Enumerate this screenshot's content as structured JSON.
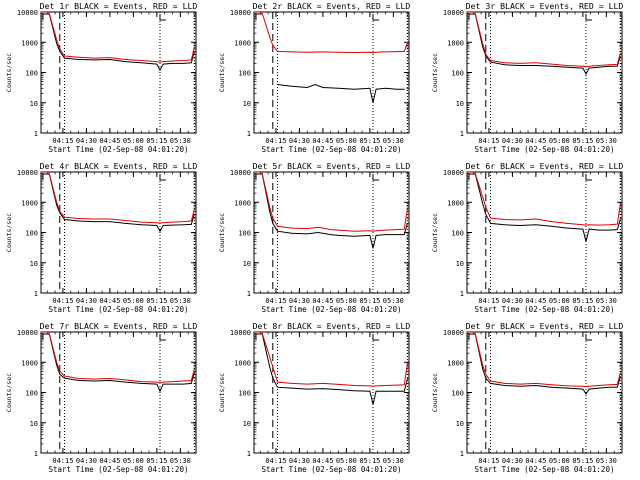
{
  "colors": {
    "events": "#000000",
    "lld": "#e00000",
    "axis": "#000000"
  },
  "ylabel": "Counts/sec",
  "xlabel": "Start Time (02-Sep-08 04:01:20)",
  "x_tick_labels": [
    "04:15",
    "04:30",
    "04:45",
    "05:00",
    "05:15",
    "05:30"
  ],
  "y_tick_labels": [
    "1",
    "10",
    "100",
    "1000",
    "10000"
  ],
  "chart_data": [
    {
      "type": "line",
      "title": "Det 1r BLACK = Events, RED = LLD",
      "xlabel": "Start Time (02-Sep-08 04:01:20)",
      "ylabel": "Counts/sec",
      "y_scale": "log",
      "ylim": [
        1,
        10000
      ],
      "xlim": [
        "04:01",
        "05:40"
      ],
      "markers": {
        "dashed": "04:13",
        "dotted": [
          "04:16",
          "05:17",
          "05:39"
        ]
      },
      "series": [
        {
          "name": "Events",
          "color": "#000000",
          "x": [
            "04:01",
            "04:06",
            "04:11",
            "04:13",
            "04:16",
            "04:25",
            "04:35",
            "04:45",
            "04:55",
            "05:05",
            "05:15",
            "05:17",
            "05:19",
            "05:25",
            "05:32",
            "05:37",
            "05:39"
          ],
          "values": [
            10000,
            10000,
            900,
            500,
            300,
            270,
            260,
            270,
            230,
            210,
            190,
            120,
            190,
            200,
            200,
            210,
            500
          ]
        },
        {
          "name": "LLD",
          "color": "#e00000",
          "x": [
            "04:01",
            "04:06",
            "04:11",
            "04:13",
            "04:16",
            "04:25",
            "04:35",
            "04:45",
            "04:55",
            "05:05",
            "05:15",
            "05:17",
            "05:19",
            "05:25",
            "05:32",
            "05:37",
            "05:39"
          ],
          "values": [
            10000,
            10000,
            1200,
            600,
            350,
            320,
            300,
            310,
            270,
            250,
            230,
            220,
            230,
            240,
            250,
            260,
            700
          ]
        }
      ]
    },
    {
      "type": "line",
      "title": "Det 2r BLACK = Events, RED = LLD",
      "xlabel": "Start Time (02-Sep-08 04:01:20)",
      "ylabel": "Counts/sec",
      "y_scale": "log",
      "ylim": [
        1,
        10000
      ],
      "xlim": [
        "04:01",
        "05:40"
      ],
      "markers": {
        "dashed": "04:13",
        "dotted": [
          "04:16",
          "05:17",
          "05:39"
        ]
      },
      "series": [
        {
          "name": "Events",
          "color": "#000000",
          "x": [
            "04:16",
            "04:25",
            "04:35",
            "04:40",
            "04:45",
            "04:55",
            "05:05",
            "05:15",
            "05:17",
            "05:19",
            "05:25",
            "05:32",
            "05:37"
          ],
          "values": [
            40,
            35,
            32,
            40,
            32,
            30,
            28,
            30,
            10,
            28,
            30,
            28,
            28
          ]
        },
        {
          "name": "LLD",
          "color": "#e00000",
          "x": [
            "04:01",
            "04:06",
            "04:11",
            "04:13",
            "04:16",
            "04:25",
            "04:35",
            "04:45",
            "04:55",
            "05:05",
            "05:15",
            "05:17",
            "05:19",
            "05:25",
            "05:32",
            "05:37",
            "05:39"
          ],
          "values": [
            10000,
            10000,
            1500,
            800,
            500,
            480,
            470,
            480,
            470,
            460,
            470,
            450,
            470,
            480,
            490,
            500,
            1000
          ]
        }
      ]
    },
    {
      "type": "line",
      "title": "Det 3r BLACK = Events, RED = LLD",
      "xlabel": "Start Time (02-Sep-08 04:01:20)",
      "ylabel": "Counts/sec",
      "y_scale": "log",
      "ylim": [
        1,
        10000
      ],
      "xlim": [
        "04:01",
        "05:40"
      ],
      "markers": {
        "dashed": "04:13",
        "dotted": [
          "04:16",
          "05:17",
          "05:39"
        ]
      },
      "series": [
        {
          "name": "Events",
          "color": "#000000",
          "x": [
            "04:01",
            "04:06",
            "04:11",
            "04:13",
            "04:16",
            "04:25",
            "04:35",
            "04:45",
            "04:55",
            "05:05",
            "05:15",
            "05:17",
            "05:19",
            "05:25",
            "05:32",
            "05:37",
            "05:39"
          ],
          "values": [
            10000,
            10000,
            700,
            350,
            220,
            180,
            170,
            170,
            160,
            150,
            140,
            90,
            140,
            150,
            160,
            160,
            350
          ]
        },
        {
          "name": "LLD",
          "color": "#e00000",
          "x": [
            "04:01",
            "04:06",
            "04:11",
            "04:13",
            "04:16",
            "04:25",
            "04:35",
            "04:45",
            "04:55",
            "05:05",
            "05:15",
            "05:17",
            "05:19",
            "05:25",
            "05:32",
            "05:37",
            "05:39"
          ],
          "values": [
            10000,
            10000,
            900,
            400,
            250,
            210,
            200,
            210,
            190,
            170,
            160,
            155,
            160,
            170,
            180,
            185,
            450
          ]
        }
      ]
    },
    {
      "type": "line",
      "title": "Det 4r BLACK = Events, RED = LLD",
      "xlabel": "Start Time (02-Sep-08 04:01:20)",
      "ylabel": "Counts/sec",
      "y_scale": "log",
      "ylim": [
        1,
        10000
      ],
      "xlim": [
        "04:01",
        "05:40"
      ],
      "markers": {
        "dashed": "04:13",
        "dotted": [
          "04:16",
          "05:17",
          "05:39"
        ]
      },
      "series": [
        {
          "name": "Events",
          "color": "#000000",
          "x": [
            "04:01",
            "04:06",
            "04:11",
            "04:13",
            "04:16",
            "04:25",
            "04:35",
            "04:45",
            "04:55",
            "05:05",
            "05:15",
            "05:17",
            "05:19",
            "05:25",
            "05:32",
            "05:37",
            "05:39"
          ],
          "values": [
            10000,
            10000,
            800,
            450,
            270,
            240,
            230,
            230,
            200,
            180,
            170,
            110,
            170,
            175,
            180,
            185,
            400
          ]
        },
        {
          "name": "LLD",
          "color": "#e00000",
          "x": [
            "04:01",
            "04:06",
            "04:11",
            "04:13",
            "04:16",
            "04:25",
            "04:35",
            "04:45",
            "04:55",
            "05:05",
            "05:15",
            "05:17",
            "05:19",
            "05:25",
            "05:32",
            "05:37",
            "05:39"
          ],
          "values": [
            10000,
            10000,
            1000,
            500,
            320,
            290,
            280,
            280,
            250,
            220,
            210,
            205,
            210,
            220,
            230,
            240,
            600
          ]
        }
      ]
    },
    {
      "type": "line",
      "title": "Det 5r BLACK = Events, RED = LLD",
      "xlabel": "Start Time (02-Sep-08 04:01:20)",
      "ylabel": "Counts/sec",
      "y_scale": "log",
      "ylim": [
        1,
        10000
      ],
      "xlim": [
        "04:01",
        "05:40"
      ],
      "markers": {
        "dashed": "04:13",
        "dotted": [
          "04:16",
          "05:17",
          "05:39"
        ]
      },
      "series": [
        {
          "name": "Events",
          "color": "#000000",
          "x": [
            "04:01",
            "04:06",
            "04:11",
            "04:13",
            "04:16",
            "04:25",
            "04:35",
            "04:42",
            "04:50",
            "04:55",
            "05:05",
            "05:15",
            "05:17",
            "05:19",
            "05:25",
            "05:32",
            "05:37",
            "05:39"
          ],
          "values": [
            10000,
            10000,
            500,
            200,
            110,
            95,
            90,
            100,
            85,
            80,
            75,
            80,
            30,
            80,
            85,
            85,
            85,
            200
          ]
        },
        {
          "name": "LLD",
          "color": "#e00000",
          "x": [
            "04:01",
            "04:06",
            "04:11",
            "04:13",
            "04:16",
            "04:25",
            "04:35",
            "04:42",
            "04:50",
            "04:55",
            "05:05",
            "05:15",
            "05:17",
            "05:19",
            "05:25",
            "05:32",
            "05:37",
            "05:39"
          ],
          "values": [
            10000,
            10000,
            700,
            300,
            160,
            140,
            135,
            150,
            125,
            120,
            110,
            115,
            110,
            115,
            120,
            125,
            130,
            600
          ]
        }
      ]
    },
    {
      "type": "line",
      "title": "Det 6r BLACK = Events, RED = LLD",
      "xlabel": "Start Time (02-Sep-08 04:01:20)",
      "ylabel": "Counts/sec",
      "y_scale": "log",
      "ylim": [
        1,
        10000
      ],
      "xlim": [
        "04:01",
        "05:40"
      ],
      "markers": {
        "dashed": "04:13",
        "dotted": [
          "04:16",
          "05:17",
          "05:39"
        ]
      },
      "series": [
        {
          "name": "Events",
          "color": "#000000",
          "x": [
            "04:01",
            "04:06",
            "04:11",
            "04:13",
            "04:16",
            "04:25",
            "04:35",
            "04:45",
            "04:55",
            "05:05",
            "05:15",
            "05:17",
            "05:19",
            "05:25",
            "05:32",
            "05:37",
            "05:39"
          ],
          "values": [
            10000,
            10000,
            900,
            400,
            200,
            180,
            170,
            180,
            160,
            140,
            130,
            50,
            130,
            120,
            120,
            125,
            280
          ]
        },
        {
          "name": "LLD",
          "color": "#e00000",
          "x": [
            "04:01",
            "04:06",
            "04:11",
            "04:13",
            "04:16",
            "04:25",
            "04:35",
            "04:45",
            "04:55",
            "05:05",
            "05:15",
            "05:17",
            "05:19",
            "05:25",
            "05:32",
            "05:37",
            "05:39"
          ],
          "values": [
            10000,
            10000,
            1500,
            700,
            300,
            270,
            260,
            280,
            230,
            200,
            180,
            175,
            180,
            175,
            180,
            190,
            900
          ]
        }
      ]
    },
    {
      "type": "line",
      "title": "Det 7r BLACK = Events, RED = LLD",
      "xlabel": "Start Time (02-Sep-08 04:01:20)",
      "ylabel": "Counts/sec",
      "y_scale": "log",
      "ylim": [
        1,
        10000
      ],
      "xlim": [
        "04:01",
        "05:40"
      ],
      "markers": {
        "dashed": "04:13",
        "dotted": [
          "04:16",
          "05:17",
          "05:39"
        ]
      },
      "series": [
        {
          "name": "Events",
          "color": "#000000",
          "x": [
            "04:01",
            "04:06",
            "04:11",
            "04:13",
            "04:16",
            "04:25",
            "04:35",
            "04:45",
            "04:55",
            "05:05",
            "05:15",
            "05:17",
            "05:19",
            "05:25",
            "05:32",
            "05:37",
            "05:39"
          ],
          "values": [
            10000,
            10000,
            800,
            400,
            300,
            250,
            240,
            250,
            220,
            200,
            190,
            110,
            190,
            190,
            190,
            200,
            450
          ]
        },
        {
          "name": "LLD",
          "color": "#e00000",
          "x": [
            "04:01",
            "04:06",
            "04:11",
            "04:13",
            "04:16",
            "04:25",
            "04:35",
            "04:45",
            "04:55",
            "05:05",
            "05:15",
            "05:17",
            "05:19",
            "05:25",
            "05:32",
            "05:37",
            "05:39"
          ],
          "values": [
            10000,
            10000,
            1000,
            500,
            350,
            290,
            280,
            290,
            260,
            230,
            220,
            215,
            220,
            230,
            240,
            250,
            600
          ]
        }
      ]
    },
    {
      "type": "line",
      "title": "Det 8r BLACK = Events, RED = LLD",
      "xlabel": "Start Time (02-Sep-08 04:01:20)",
      "ylabel": "Counts/sec",
      "y_scale": "log",
      "ylim": [
        1,
        10000
      ],
      "xlim": [
        "04:01",
        "05:40"
      ],
      "markers": {
        "dashed": "04:13",
        "dotted": [
          "04:16",
          "05:17",
          "05:39"
        ]
      },
      "series": [
        {
          "name": "Events",
          "color": "#000000",
          "x": [
            "04:01",
            "04:06",
            "04:11",
            "04:13",
            "04:16",
            "04:25",
            "04:35",
            "04:45",
            "04:55",
            "05:05",
            "05:15",
            "05:17",
            "05:19",
            "05:25",
            "05:32",
            "05:37",
            "05:39"
          ],
          "values": [
            10000,
            10000,
            700,
            300,
            150,
            140,
            130,
            135,
            125,
            115,
            110,
            40,
            110,
            110,
            110,
            110,
            280
          ]
        },
        {
          "name": "LLD",
          "color": "#e00000",
          "x": [
            "04:01",
            "04:06",
            "04:11",
            "04:13",
            "04:16",
            "04:25",
            "04:35",
            "04:45",
            "04:55",
            "05:05",
            "05:15",
            "05:17",
            "05:19",
            "05:25",
            "05:32",
            "05:37",
            "05:39"
          ],
          "values": [
            10000,
            10000,
            1500,
            700,
            220,
            200,
            190,
            200,
            185,
            170,
            165,
            160,
            165,
            170,
            175,
            180,
            900
          ]
        }
      ]
    },
    {
      "type": "line",
      "title": "Det 9r BLACK = Events, RED = LLD",
      "xlabel": "Start Time (02-Sep-08 04:01:20)",
      "ylabel": "Counts/sec",
      "y_scale": "log",
      "ylim": [
        1,
        10000
      ],
      "xlim": [
        "04:01",
        "05:40"
      ],
      "markers": {
        "dashed": "04:13",
        "dotted": [
          "04:16",
          "05:17",
          "05:39"
        ]
      },
      "series": [
        {
          "name": "Events",
          "color": "#000000",
          "x": [
            "04:01",
            "04:06",
            "04:11",
            "04:13",
            "04:16",
            "04:25",
            "04:35",
            "04:45",
            "04:55",
            "05:05",
            "05:15",
            "05:17",
            "05:19",
            "05:25",
            "05:32",
            "05:37",
            "05:39"
          ],
          "values": [
            10000,
            10000,
            600,
            300,
            200,
            170,
            160,
            170,
            150,
            140,
            130,
            90,
            130,
            140,
            150,
            150,
            340
          ]
        },
        {
          "name": "LLD",
          "color": "#e00000",
          "x": [
            "04:01",
            "04:06",
            "04:11",
            "04:13",
            "04:16",
            "04:25",
            "04:35",
            "04:45",
            "04:55",
            "05:05",
            "05:15",
            "05:17",
            "05:19",
            "05:25",
            "05:32",
            "05:37",
            "05:39"
          ],
          "values": [
            10000,
            10000,
            800,
            400,
            240,
            200,
            190,
            200,
            180,
            165,
            160,
            155,
            160,
            170,
            180,
            185,
            460
          ]
        }
      ]
    }
  ]
}
